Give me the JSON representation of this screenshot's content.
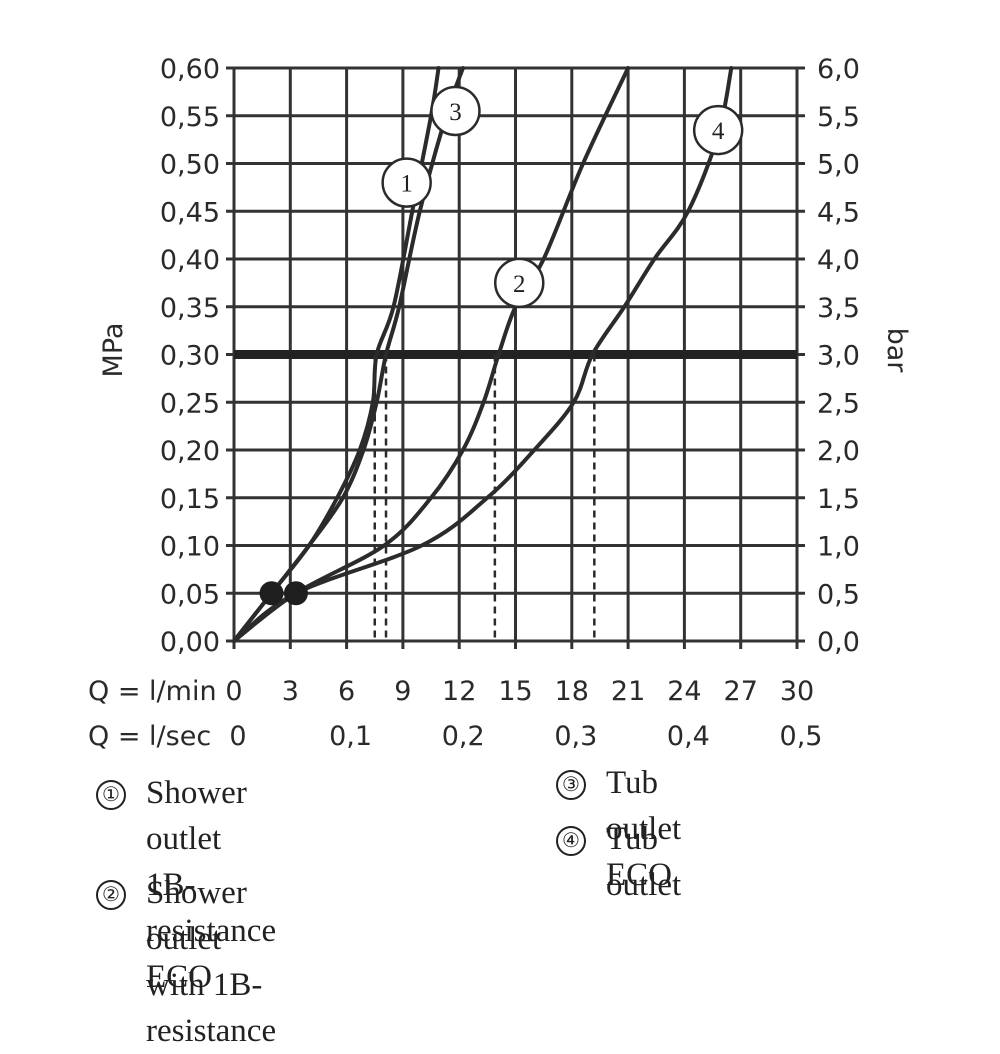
{
  "chart_data": {
    "type": "line",
    "y_left_label": "MPa",
    "y_right_label": "bar",
    "x_label_primary": "Q = l/min",
    "x_label_secondary": "Q = l/sec",
    "x_ticks": [
      "0",
      "3",
      "6",
      "9",
      "12",
      "15",
      "18",
      "21",
      "24",
      "27",
      "30"
    ],
    "x_ticks_secondary": [
      "0",
      "0,1",
      "0,2",
      "0,3",
      "0,4",
      "0,5"
    ],
    "y_ticks_left": [
      "0,00",
      "0,05",
      "0,10",
      "0,15",
      "0,20",
      "0,25",
      "0,30",
      "0,35",
      "0,40",
      "0,45",
      "0,50",
      "0,55",
      "0,60"
    ],
    "y_ticks_right": [
      "0,0",
      "0,5",
      "1,0",
      "1,5",
      "2,0",
      "2,5",
      "3,0",
      "3,5",
      "4,0",
      "4,5",
      "5,0",
      "5,5",
      "6,0"
    ],
    "xlim": [
      0,
      30
    ],
    "ylim": [
      0,
      0.6
    ],
    "reference_line_y": 0.3,
    "series": [
      {
        "marker": "1",
        "points": [
          [
            0,
            0
          ],
          [
            2,
            0.05
          ],
          [
            4,
            0.1
          ],
          [
            5.5,
            0.15
          ],
          [
            6.7,
            0.2
          ],
          [
            7.4,
            0.25
          ],
          [
            7.6,
            0.3
          ],
          [
            8.5,
            0.35
          ],
          [
            9.5,
            0.45
          ],
          [
            10.5,
            0.55
          ],
          [
            10.9,
            0.6
          ]
        ],
        "marker_at": [
          9.2,
          0.48
        ],
        "drop_x": 7.5
      },
      {
        "marker": "3",
        "points": [
          [
            0,
            0
          ],
          [
            2,
            0.05
          ],
          [
            4,
            0.1
          ],
          [
            5.8,
            0.15
          ],
          [
            6.9,
            0.2
          ],
          [
            7.6,
            0.25
          ],
          [
            8.1,
            0.3
          ],
          [
            8.8,
            0.35
          ],
          [
            9.9,
            0.45
          ],
          [
            11.3,
            0.55
          ],
          [
            12.2,
            0.6
          ]
        ],
        "marker_at": [
          11.8,
          0.555
        ],
        "drop_x": 8.1
      },
      {
        "marker": "2",
        "points": [
          [
            0,
            0
          ],
          [
            3.3,
            0.05
          ],
          [
            8,
            0.1
          ],
          [
            10.5,
            0.15
          ],
          [
            12.2,
            0.2
          ],
          [
            13.3,
            0.25
          ],
          [
            14.1,
            0.3
          ],
          [
            15,
            0.35
          ],
          [
            16.5,
            0.4
          ],
          [
            18.6,
            0.5
          ],
          [
            21,
            0.6
          ]
        ],
        "marker_at": [
          15.2,
          0.375
        ],
        "drop_x": 13.9
      },
      {
        "marker": "4",
        "points": [
          [
            0,
            0
          ],
          [
            3.3,
            0.05
          ],
          [
            10,
            0.1
          ],
          [
            13.5,
            0.15
          ],
          [
            16,
            0.2
          ],
          [
            18.1,
            0.25
          ],
          [
            19.1,
            0.3
          ],
          [
            20.8,
            0.35
          ],
          [
            22.4,
            0.4
          ],
          [
            24.2,
            0.45
          ],
          [
            25.8,
            0.53
          ],
          [
            26.5,
            0.6
          ]
        ],
        "marker_at": [
          25.8,
          0.535
        ],
        "drop_x": 19.2
      }
    ],
    "dots": [
      [
        2,
        0.05
      ],
      [
        3.3,
        0.05
      ]
    ]
  },
  "legend": [
    {
      "num": "①",
      "text": "Shower outlet 1B-",
      "text2": "resistance ECO"
    },
    {
      "num": "②",
      "text": "Shower outlet with 1B-",
      "text2": "resistance"
    },
    {
      "num": "③",
      "text": "Tub outlet ECO"
    },
    {
      "num": "④",
      "text": "Tub outlet"
    }
  ]
}
